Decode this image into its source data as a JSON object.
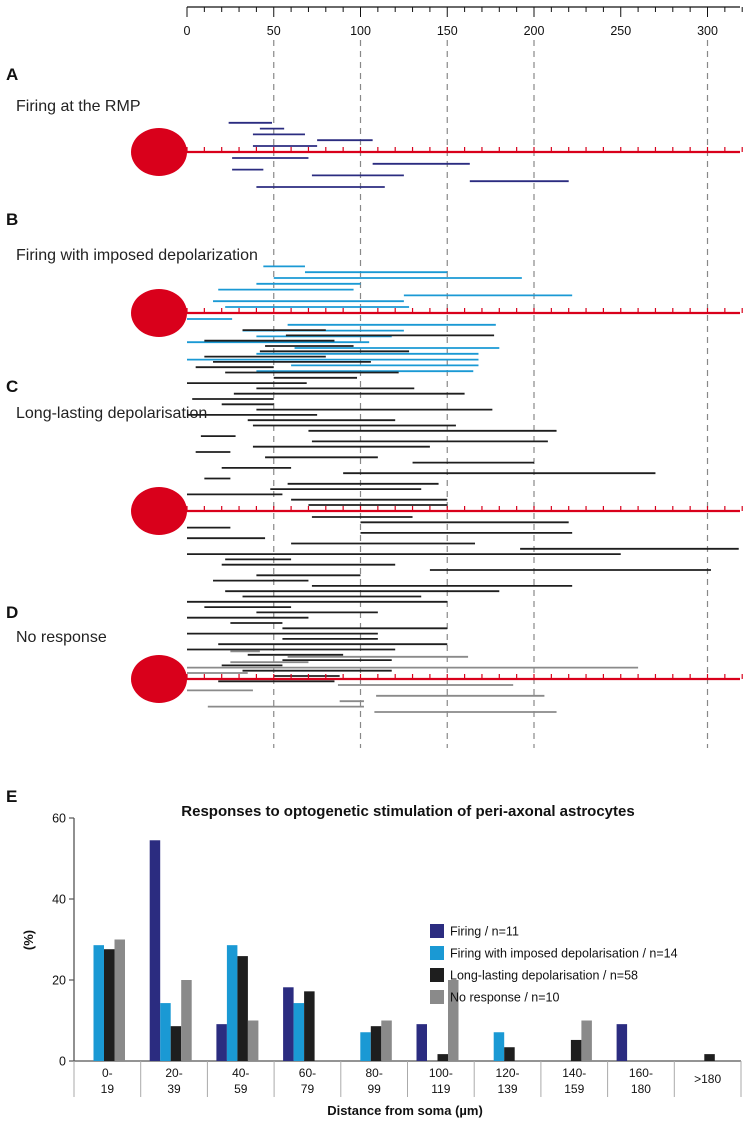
{
  "chart_data": [
    {
      "id": "segments",
      "type": "range",
      "axis": {
        "min": 0,
        "max": 320,
        "major_ticks": [
          0,
          50,
          100,
          150,
          200,
          250,
          300
        ],
        "minor_step": 10,
        "gridlines": [
          50,
          100,
          150,
          200,
          300
        ]
      },
      "panels": [
        {
          "letter": "A",
          "title": "Firing at the RMP",
          "color": "#2b2c80",
          "above": [
            [
              24,
              49
            ],
            [
              42,
              56
            ],
            [
              38,
              68
            ],
            [
              75,
              107
            ],
            [
              38,
              75
            ]
          ],
          "below": [
            [
              26,
              70
            ],
            [
              107,
              163
            ],
            [
              26,
              44
            ],
            [
              72,
              125
            ],
            [
              163,
              220
            ],
            [
              40,
              114
            ]
          ]
        },
        {
          "letter": "B",
          "title": "Firing with imposed depolarization",
          "color": "#1a99d4",
          "above": [
            [
              44,
              68
            ],
            [
              68,
              150
            ],
            [
              50,
              193
            ],
            [
              40,
              100
            ],
            [
              18,
              96
            ],
            [
              125,
              222
            ],
            [
              15,
              125
            ],
            [
              22,
              128
            ]
          ],
          "below": [
            [
              0,
              26
            ],
            [
              58,
              178
            ],
            [
              32,
              125
            ],
            [
              40,
              118
            ],
            [
              0,
              105
            ],
            [
              62,
              180
            ],
            [
              40,
              168
            ],
            [
              0,
              168
            ],
            [
              60,
              168
            ],
            [
              40,
              165
            ]
          ]
        },
        {
          "letter": "C",
          "title": "Long-lasting depolarisation",
          "color": "#1e1e1e",
          "above": [
            [
              32,
              80
            ],
            [
              57,
              177
            ],
            [
              10,
              85
            ],
            [
              45,
              96
            ],
            [
              42,
              128
            ],
            [
              10,
              80
            ],
            [
              15,
              106
            ],
            [
              5,
              50
            ],
            [
              22,
              122
            ],
            [
              50,
              98
            ],
            [
              0,
              69
            ],
            [
              40,
              131
            ],
            [
              27,
              160
            ],
            [
              3,
              50
            ],
            [
              20,
              50
            ],
            [
              40,
              176
            ],
            [
              0,
              75
            ],
            [
              35,
              120
            ],
            [
              38,
              155
            ],
            [
              70,
              213
            ],
            [
              8,
              28
            ],
            [
              72,
              208
            ],
            [
              38,
              140
            ],
            [
              5,
              25
            ],
            [
              45,
              110
            ],
            [
              130,
              200
            ],
            [
              20,
              60
            ],
            [
              90,
              270
            ],
            [
              10,
              25
            ],
            [
              58,
              145
            ],
            [
              48,
              135
            ],
            [
              0,
              55
            ],
            [
              60,
              150
            ],
            [
              70,
              150
            ]
          ],
          "below": [
            [
              72,
              130
            ],
            [
              100,
              220
            ],
            [
              0,
              25
            ],
            [
              100,
              222
            ],
            [
              0,
              45
            ],
            [
              60,
              166
            ],
            [
              192,
              318
            ],
            [
              0,
              250
            ],
            [
              22,
              60
            ],
            [
              20,
              120
            ],
            [
              140,
              302
            ],
            [
              40,
              100
            ],
            [
              15,
              70
            ],
            [
              72,
              222
            ],
            [
              22,
              180
            ],
            [
              32,
              135
            ],
            [
              0,
              150
            ],
            [
              10,
              60
            ],
            [
              40,
              110
            ],
            [
              0,
              70
            ],
            [
              25,
              55
            ],
            [
              55,
              150
            ],
            [
              0,
              110
            ],
            [
              55,
              110
            ],
            [
              18,
              150
            ],
            [
              0,
              120
            ],
            [
              35,
              90
            ],
            [
              55,
              118
            ],
            [
              20,
              55
            ],
            [
              32,
              118
            ],
            [
              50,
              88
            ],
            [
              18,
              85
            ]
          ]
        },
        {
          "letter": "D",
          "title": "No response",
          "color": "#8a8a8a",
          "above": [
            [
              25,
              42
            ],
            [
              58,
              162
            ],
            [
              25,
              70
            ],
            [
              0,
              260
            ],
            [
              0,
              35
            ]
          ],
          "below": [
            [
              87,
              188
            ],
            [
              0,
              38
            ],
            [
              109,
              206
            ],
            [
              88,
              102
            ],
            [
              12,
              102
            ],
            [
              108,
              213
            ]
          ]
        }
      ]
    },
    {
      "id": "histogram",
      "type": "bar",
      "letter": "E",
      "title": "Responses to optogenetic stimulation of peri-axonal astrocytes",
      "xlabel": "Distance from soma (µm)",
      "ylabel": "(%)",
      "ylim": [
        0,
        60
      ],
      "yticks": [
        0,
        20,
        40,
        60
      ],
      "categories": [
        [
          "0-",
          "19"
        ],
        [
          "20-",
          "39"
        ],
        [
          "40-",
          "59"
        ],
        [
          "60-",
          "79"
        ],
        [
          "80-",
          "99"
        ],
        [
          "100-",
          "119"
        ],
        [
          "120-",
          "139"
        ],
        [
          "140-",
          "159"
        ],
        [
          "160-",
          "180"
        ],
        [
          ">180"
        ]
      ],
      "legend_position": "right",
      "series": [
        {
          "name": "Firing / n=11",
          "color": "#2b2c80",
          "values": [
            0,
            54.5,
            9.1,
            18.2,
            0,
            9.1,
            0,
            0,
            9.1,
            0
          ]
        },
        {
          "name": "Firing with imposed depolarisation / n=14",
          "color": "#1a99d4",
          "values": [
            28.6,
            14.3,
            28.6,
            14.3,
            7.1,
            0,
            7.1,
            0,
            0,
            0
          ]
        },
        {
          "name": "Long-lasting depolarisation / n=58",
          "color": "#1e1e1e",
          "values": [
            27.6,
            8.6,
            25.9,
            17.2,
            8.6,
            1.7,
            3.4,
            5.2,
            0,
            1.7
          ]
        },
        {
          "name": "No response / n=10",
          "color": "#8a8a8a",
          "values": [
            30,
            20,
            10,
            0,
            10,
            20,
            0,
            10,
            0,
            0
          ]
        }
      ]
    }
  ]
}
